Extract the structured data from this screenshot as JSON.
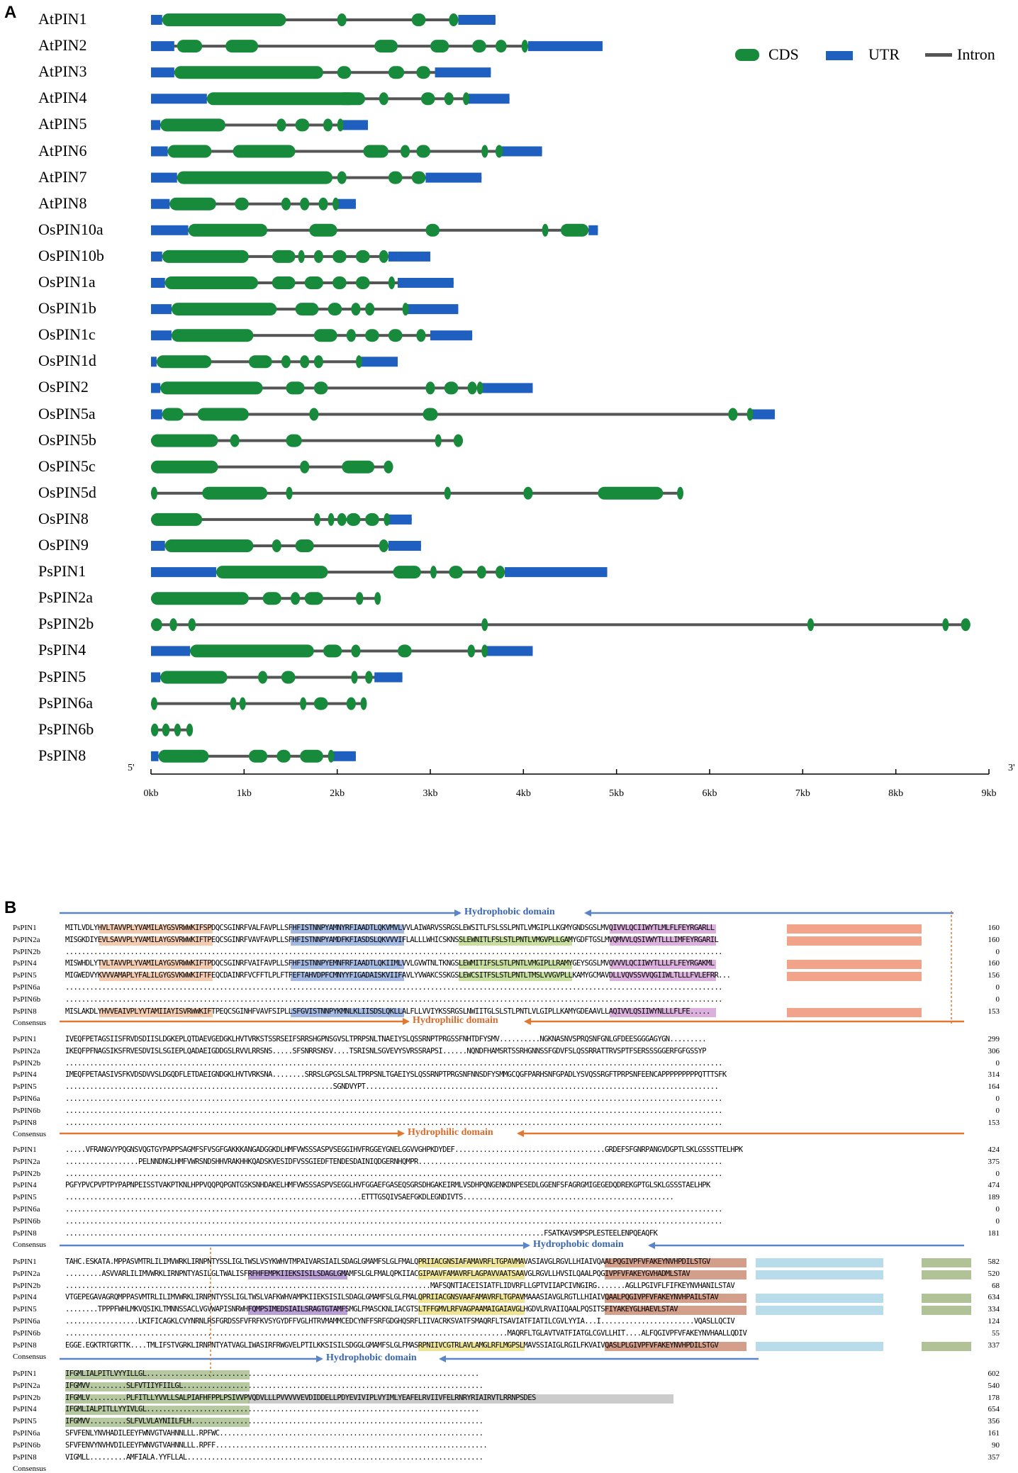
{
  "panel_a": {
    "letter": "A",
    "genes": [
      "AtPIN1",
      "AtPIN2",
      "AtPIN3",
      "AtPIN4",
      "AtPIN5",
      "AtPIN6",
      "AtPIN7",
      "AtPIN8",
      "OsPIN10a",
      "OsPIN10b",
      "OsPIN1a",
      "OsPIN1b",
      "OsPIN1c",
      "OsPIN1d",
      "OsPIN2",
      "OsPIN5a",
      "OsPIN5b",
      "OsPIN5c",
      "OsPIN5d",
      "OsPIN8",
      "OsPIN9",
      "PsPIN1",
      "PsPIN2a",
      "PsPIN2b",
      "PsPIN4",
      "PsPIN5",
      "PsPIN6a",
      "PsPIN6b",
      "PsPIN8"
    ],
    "legend": {
      "cds": "CDS",
      "utr": "UTR",
      "intron": "Intron"
    },
    "axis": {
      "start": "5'",
      "end": "3'",
      "ticks": [
        "0kb",
        "1kb",
        "2kb",
        "3kb",
        "4kb",
        "5kb",
        "6kb",
        "7kb",
        "8kb",
        "9kb"
      ],
      "max_kb": 9
    },
    "colors": {
      "cds": "#178a3c",
      "utr": "#1f5fbf",
      "intron": "#555555"
    }
  },
  "panel_b": {
    "letter": "B",
    "domains": {
      "hydrophobic_1": "Hydrophobic domain",
      "hydrophilic_1": "Hydrophilic domain",
      "hydrophilic_2": "Hydrophilic domain",
      "hydrophobic_2": "Hydrophobic domain",
      "hydrophobic_3": "Hydrophobic domain"
    },
    "consensus": "Consensus",
    "blocks": [
      {
        "rows": [
          {
            "name": "PsPIN1",
            "seq": "MITLVDLYHVLTAVVPLYVAMILAYGSVRWWKIFSPDQCSGINRFVALFAVPLLSFHFISTNNPYAMNYRFIAADTLQKVMVLVVLAIWARVSSRGSLEWSITLFSLSSLPNTLVMGIPLLKGMYGNDSGSLMVQIVVLQCIIWYTLMLFLFEYRGARLL",
            "num": "160"
          },
          {
            "name": "PsPIN2a",
            "seq": "MISGKDIYEVLSAVVPLYVAMILAYGSVRWWKIFTPEQCSGINRFVAVFAVPLLSFHFISTNNPYAMDFKFIASDSLQKVVVIFLALLLWHICSKNSSLEWNITLFSLSTLPNTLVMGVPLLGAMYGDFTGSLMVQMVVLQSIVWYTLLLIMFEYRGARIL",
            "num": "160"
          },
          {
            "name": "PsPIN2b",
            "seq": "..................................................................................................................................................................",
            "num": "0"
          },
          {
            "name": "PsPIN4",
            "seq": "MISWHDLYTVLTAVVPLYVAMILAYGSVRWWKIFTPDQCSGINRFVAIFAVPLLSFHFISTNNPYEMNFRFIAADTLQKIIMLVVLGVWTNLTKNGSLEWMITIFSLSTLPNTLVMGIPLLRAMYGEYSGSLMVQVVVLQCIIWYTLLLFLFEYRGAKML",
            "num": "160"
          },
          {
            "name": "PsPIN5",
            "seq": "MIGWEDVYKVVVAMAPLYFALILGYGSVKWWKIFTFEQCDAINRFVCFFTLPLFTFEFTAHVDPFCMNYYFIGADAISKVIIFAVLYVWAKCSSKGSLEWCSITFSLSTLPNTLTMSLVVGVPLLKAMYGCMAVDLLVQVSSVVQGIIWLTLLLFVLEFRR...",
            "num": "156"
          },
          {
            "name": "PsPIN6a",
            "seq": "..................................................................................................................................................................",
            "num": "0"
          },
          {
            "name": "PsPIN6b",
            "seq": "..................................................................................................................................................................",
            "num": "0"
          },
          {
            "name": "PsPIN8",
            "seq": "MISLAKDLYHVVEAIVPLYVTAMIIAYISVRWWKIFTPEQCSGINHFVAVFSIPLLSFGVISTNNPYKMNLKLIISDSLQKLLALFLLVVIYKSSRGSLNWIITGLSLSTLPNTLVLGIPLLKAMYGDEAAVLLAQIVVLQSIIWYNLLLFLFE.....",
            "num": "153"
          },
          {
            "name": "Consensus",
            "seq": "",
            "num": ""
          }
        ]
      },
      {
        "rows": [
          {
            "name": "PsPIN1",
            "seq": "IVEQFPETAGSIISFRVDSDIISLDGKEPLQTDAEVGEDGKLHVTVRKSTSSRSEIFSRRSHGPNSGVSLTPRPSNLTNAEIYSLQSSRNPTPRGSSFNHTDFYSMV..........NGKNASNVSPRQSNFGNLGFDEESGGGAGYGN.........",
            "num": "299"
          },
          {
            "name": "PsPIN2a",
            "seq": "IKEQFPFNAGSIKSFRVESDVISLSGIEPLQADAEIGDDGSLRVVLRRSNS.....SFSNRRSNSV....TSRISNLSGVEVYSVRSSRAPSI......NQNDFHAMSRTSSRHGNNSSFGDVFSLQSSRRATTRVSPTFSERSSSGGERFGFGSSYP",
            "num": "306"
          },
          {
            "name": "PsPIN2b",
            "seq": "..................................................................................................................................................................",
            "num": "0"
          },
          {
            "name": "PsPIN4",
            "seq": "IMEQFPETAASIVSFKVDSDVVSLDGQDFLETDAEIGNDGKLHVTVRKSNA........SRRSLGPGSLSALTPRPSNLTGAEIYSLQSSRNPTPRGSNFNNSDFYSMMGCQGFPARHSNFGPADLYSVQSSRGFTPRPSNFEENCAPPPPPPPPPQTTTSFK",
            "num": "314"
          },
          {
            "name": "PsPIN5",
            "seq": "..................................................................SGNDVYPT.......................................................................................",
            "num": "164"
          },
          {
            "name": "PsPIN6a",
            "seq": "..................................................................................................................................................................",
            "num": "0"
          },
          {
            "name": "PsPIN6b",
            "seq": "..................................................................................................................................................................",
            "num": "0"
          },
          {
            "name": "PsPIN8",
            "seq": "..................................................................................................................................................................",
            "num": "153"
          },
          {
            "name": "Consensus",
            "seq": "",
            "num": ""
          }
        ]
      },
      {
        "rows": [
          {
            "name": "PsPIN1",
            "seq": ".....VFRANGVYPQGNSVQGTGYPAPPSAGMFSFVSGFGAKKKANGADGGKDLHMFVWSSSASPVSEGGIHVFRGGEYGNELGGVVGHPKDYDEF.....................................GRDEFSFGNRPANGVDGPTLSKLGSSSTTELHPK",
            "num": "424"
          },
          {
            "name": "PsPIN2a",
            "seq": "..................PELNNDNGLHMFVWRSNDSHHVRAKHHKQADSKVESIDFVSSGIEDFTENDESDAINIQDGERNHQMPR...........................................................................",
            "num": "375"
          },
          {
            "name": "PsPIN2b",
            "seq": "..................................................................................................................................................................",
            "num": "0"
          },
          {
            "name": "PsPIN4",
            "seq": "PGFYPVCPVPTPYPAPNPEISSTVAKPTKNLHPPVQQPQPGNTGSKSNHDAKELHMFVWSSSASPVSEGGLHVFGGAEFGASEQSGRSDHGAKEIRMLVSDHPQNGENKDNPESEDLGGENFSFAGRGMIGEGEDQDREKGPTGLSKLGSSSTAELHPK",
            "num": "474"
          },
          {
            "name": "PsPIN5",
            "seq": ".........................................................................ETTTGSQIVSAEFGKDLEGNDIVTS....................................................",
            "num": "189"
          },
          {
            "name": "PsPIN6a",
            "seq": "..................................................................................................................................................................",
            "num": "0"
          },
          {
            "name": "PsPIN6b",
            "seq": "..................................................................................................................................................................",
            "num": "0"
          },
          {
            "name": "PsPIN8",
            "seq": "......................................................................................................................FSATKAVSMPSPLESTEELENPQEAQFK",
            "num": "181"
          },
          {
            "name": "Consensus",
            "seq": "",
            "num": ""
          }
        ]
      },
      {
        "rows": [
          {
            "name": "PsPIN1",
            "seq": "TAHC.ESKATA.MPPASVMTRLILIMVWRKLIRNPNTYSSLIGLTWSLVSYKWHVTMPAIVARSIAILSDAGLGMAMFSLGLFMALQPRIIACGNSIAFAMAVRFLTGPAVMAVASIAVGLRGVLLHIAIVQAALPQGIVPFVFAKEYNVHPDILSTGV",
            "num": "582"
          },
          {
            "name": "PsPIN2a",
            "seq": ".........ASVVARLILIMVWRKLIRNPNTYASILGLTWALISFRFHFEMPKIIEKSISILSDAGLGMAMFSLGLFMALQPKIIACGIPAAVFAMAVRFLAGPAVVAATSAAVGLRGVLLHVSILQAALPQGIVPFVFAKEYGVHADMLSTAV",
            "num": "520"
          },
          {
            "name": "PsPIN2b",
            "seq": "..........................................................................................MAFSQNTIACEISIATFLIDVRFLLGPTVIIAPCIVNGIRG.......AGLLPGIVFLFIFKEYNVHANILSTAV",
            "num": "68"
          },
          {
            "name": "PsPIN4",
            "seq": "VTGEPEGAVAGRQMPPASVMTRLILIMVWRKLIRNPNTYSSLIGLTWSLVAFKWHVAMPKIIEKSISILSDAGLGMAMFSLGLFMALQPRIIACGNSVAAFAMAVRFLTGPAVMAAASIAVGLRGTLLHIAIVQAALPQGIVPFVFAKEYNVHPAILSTAV",
            "num": "634"
          },
          {
            "name": "PsPIN5",
            "seq": "........TPPPFWHLMKVQSIKLTMNNSSACLVGVWAPISNRWHFQMPSIMEDSIAILSRAGTGTAMFSMGLFMASCKNLIACGTSLTFFGMVLRFVAGPAAMAIGAIAVGLHGDVLRVAIIQAALPQSITSFIYAKEYGLHAEVLSTAV",
            "num": "334"
          },
          {
            "name": "PsPIN6a",
            "seq": "..................LKIFICAGKLCVYNRNLRSFGRDSSFVFRFKVSYGYDFFVGLHTRVMAMMCEDCYNFFSRFGDGHQSRFLIIVACRKSVATFSMAQRFLTSAVIATFIATILCGVLYYIA...I.......................VQASLLQCIV",
            "num": "124"
          },
          {
            "name": "PsPIN6b",
            "seq": ".............................................................................................................MAQRFLTGLAVTVATFIATGLCGVLLHIT....ALFQGIVPFVFAKEYNVHAALLQDIV",
            "num": "55"
          },
          {
            "name": "PsPIN8",
            "seq": "EGGE.EGKTRTGRTTK....TMLIFSTVGRKLIRNPNTYATVAGLIWASIRFRWGVELPTILKKSISILSDGGLGMAMFSLGLFMASRPNIIVCGTRLAVLAMGLRFLMGPSLMAVSSIAIGLRGILFKVAIVQASLPLGIVPFVFAKEYNVHPDILSTGV",
            "num": "337"
          },
          {
            "name": "Consensus",
            "seq": "",
            "num": ""
          }
        ]
      },
      {
        "rows": [
          {
            "name": "PsPIN1",
            "seq": "IFGMLIALPITLVYYILLGL..................................................................................",
            "num": "602"
          },
          {
            "name": "PsPIN2a",
            "seq": "IFGMVV.........SLFVTIIYFIILGL..........................................................................",
            "num": "540"
          },
          {
            "name": "PsPIN2b",
            "seq": "IFGMLV.........PLFITLLYVVLLSALPIAFHFPPLPSIVVPVQDVLLLPVVVVVEVDIDDELLPDYEVIVIPLVYIMLYEAFELRVIIVFELRNRYRIAIRVTLRRNPSDES",
            "num": "178"
          },
          {
            "name": "PsPIN4",
            "seq": "IFGMLIALPITLLYYIVLGL..................................................................................",
            "num": "654"
          },
          {
            "name": "PsPIN5",
            "seq": "IFGMVV.........SLFVLVLAYNIILFLH........................................................................",
            "num": "356"
          },
          {
            "name": "PsPIN6a",
            "seq": "SFVFENLYNVHADILEEYFWNVGTVAHNNLLL.RPFWC.................................................................",
            "num": "161"
          },
          {
            "name": "PsPIN6b",
            "seq": "SFVFENVYNVHVDILEEYFWNVGTVAHNNLLL.RPFF...................................................................",
            "num": "90"
          },
          {
            "name": "PsPIN8",
            "seq": "VIGMLL.........AMFIALA.YYFLLAL.........................................................................",
            "num": "357"
          },
          {
            "name": "Consensus",
            "seq": "",
            "num": ""
          }
        ]
      }
    ]
  }
}
